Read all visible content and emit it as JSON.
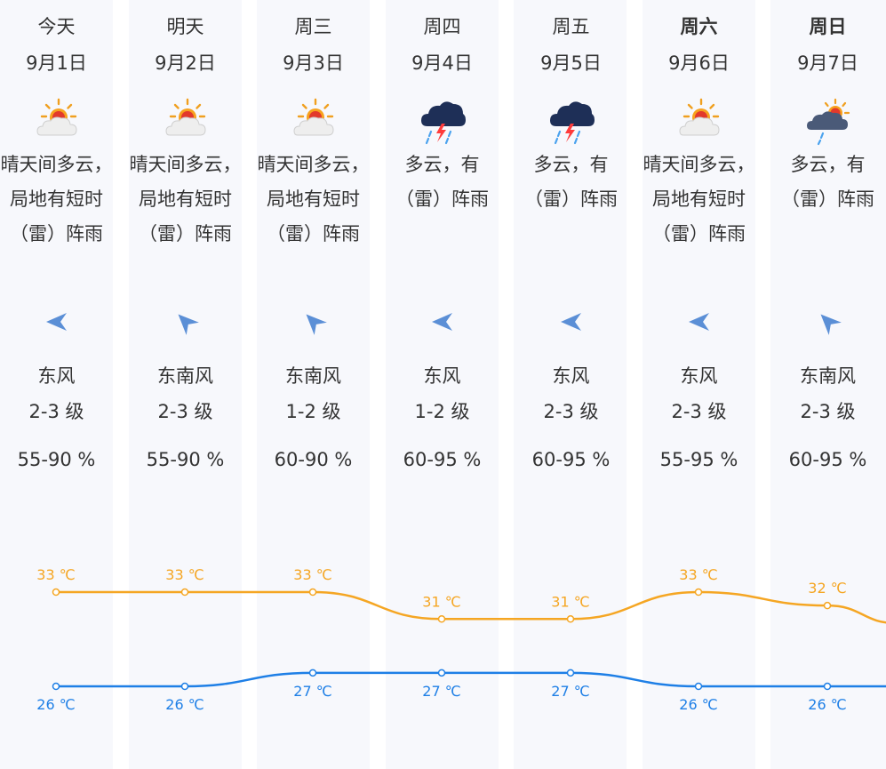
{
  "days": [
    {
      "day": "今天",
      "date": "9月1日",
      "icon": "sun-cloud-icon",
      "desc": "晴天间多云，局地有短时（雷）阵雨",
      "wind_dir": "east",
      "wind": "东风",
      "wind_level": "2-3 级",
      "humidity": "55-90 %",
      "weekend": false
    },
    {
      "day": "明天",
      "date": "9月2日",
      "icon": "sun-cloud-icon",
      "desc": "晴天间多云，局地有短时（雷）阵雨",
      "wind_dir": "southeast",
      "wind": "东南风",
      "wind_level": "2-3 级",
      "humidity": "55-90 %",
      "weekend": false
    },
    {
      "day": "周三",
      "date": "9月3日",
      "icon": "sun-cloud-icon",
      "desc": "晴天间多云，局地有短时（雷）阵雨",
      "wind_dir": "southeast",
      "wind": "东南风",
      "wind_level": "1-2 级",
      "humidity": "60-90 %",
      "weekend": false
    },
    {
      "day": "周四",
      "date": "9月4日",
      "icon": "thunder-rain-icon",
      "desc": "多云，有（雷）阵雨",
      "wind_dir": "east",
      "wind": "东风",
      "wind_level": "1-2 级",
      "humidity": "60-95 %",
      "weekend": false
    },
    {
      "day": "周五",
      "date": "9月5日",
      "icon": "thunder-rain-icon",
      "desc": "多云，有（雷）阵雨",
      "wind_dir": "east",
      "wind": "东风",
      "wind_level": "2-3 级",
      "humidity": "60-95 %",
      "weekend": false
    },
    {
      "day": "周六",
      "date": "9月6日",
      "icon": "sun-cloud-icon",
      "desc": "晴天间多云，局地有短时（雷）阵雨",
      "wind_dir": "east",
      "wind": "东风",
      "wind_level": "2-3 级",
      "humidity": "55-95 %",
      "weekend": true
    },
    {
      "day": "周日",
      "date": "9月7日",
      "icon": "sun-rain-cloud-icon",
      "desc": "多云，有（雷）阵雨",
      "wind_dir": "southeast",
      "wind": "东南风",
      "wind_level": "2-3 级",
      "humidity": "60-95 %",
      "weekend": true
    }
  ],
  "temperature": {
    "unit": "℃",
    "high": [
      33,
      33,
      33,
      31,
      31,
      33,
      32
    ],
    "low": [
      26,
      26,
      27,
      27,
      27,
      26,
      26
    ]
  },
  "colors": {
    "high_line": "#f5a623",
    "low_line": "#1e7fe6",
    "arrow": "#5b8fd6",
    "stripe": "#f7f8fc"
  }
}
